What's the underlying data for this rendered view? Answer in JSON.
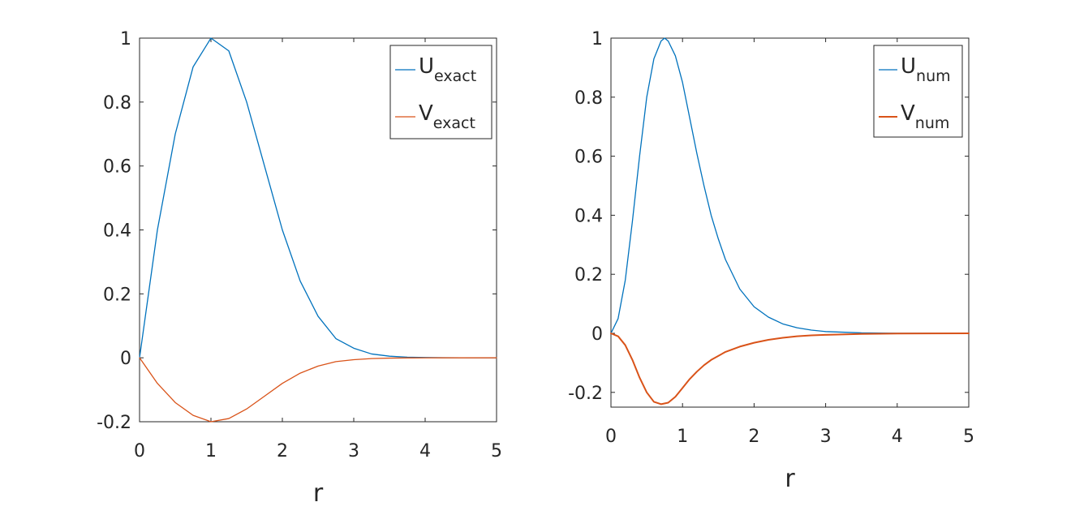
{
  "chart_data": [
    {
      "type": "line",
      "xlabel": "r",
      "ylabel": "",
      "xlim": [
        0,
        5
      ],
      "ylim": [
        -0.2,
        1
      ],
      "xticks": [
        "0",
        "1",
        "2",
        "3",
        "4",
        "5"
      ],
      "yticks": [
        "-0.2",
        "0",
        "0.2",
        "0.4",
        "0.6",
        "0.8",
        "1"
      ],
      "grid": false,
      "legend_position": "top-right",
      "series": [
        {
          "name": "U",
          "subscript": "exact",
          "color": "#0072BD",
          "x": [
            0,
            0.25,
            0.5,
            0.75,
            1,
            1.25,
            1.5,
            1.75,
            2,
            2.25,
            2.5,
            2.75,
            3,
            3.25,
            3.5,
            3.75,
            4,
            4.25,
            4.5,
            5
          ],
          "y": [
            0,
            0.4,
            0.7,
            0.91,
            1,
            0.96,
            0.8,
            0.6,
            0.4,
            0.24,
            0.13,
            0.06,
            0.03,
            0.012,
            0.005,
            0.002,
            0.001,
            0.0003,
            0.0001,
            0
          ]
        },
        {
          "name": "V",
          "subscript": "exact",
          "color": "#D95319",
          "x": [
            0,
            0.25,
            0.5,
            0.75,
            1,
            1.25,
            1.5,
            1.75,
            2,
            2.25,
            2.5,
            2.75,
            3,
            3.25,
            3.5,
            3.75,
            4,
            4.25,
            4.5,
            5
          ],
          "y": [
            0,
            -0.08,
            -0.14,
            -0.18,
            -0.2,
            -0.19,
            -0.16,
            -0.12,
            -0.08,
            -0.048,
            -0.026,
            -0.012,
            -0.006,
            -0.0024,
            -0.001,
            -0.0004,
            -0.0002,
            -0.0001,
            0,
            0
          ]
        }
      ]
    },
    {
      "type": "line",
      "xlabel": "r",
      "ylabel": "",
      "xlim": [
        0,
        5
      ],
      "ylim": [
        -0.25,
        1
      ],
      "xticks": [
        "0",
        "1",
        "2",
        "3",
        "4",
        "5"
      ],
      "yticks": [
        "-0.2",
        "0",
        "0.2",
        "0.4",
        "0.6",
        "0.8",
        "1"
      ],
      "grid": false,
      "legend_position": "top-right",
      "series": [
        {
          "name": "U",
          "subscript": "num",
          "color": "#0072BD",
          "x": [
            0,
            0.1,
            0.2,
            0.3,
            0.4,
            0.5,
            0.6,
            0.7,
            0.75,
            0.8,
            0.9,
            1,
            1.1,
            1.2,
            1.3,
            1.4,
            1.5,
            1.6,
            1.8,
            2,
            2.2,
            2.4,
            2.6,
            2.8,
            3,
            3.5,
            4,
            5
          ],
          "y": [
            0,
            0.05,
            0.18,
            0.38,
            0.6,
            0.8,
            0.93,
            0.99,
            1,
            0.99,
            0.94,
            0.85,
            0.73,
            0.61,
            0.5,
            0.4,
            0.32,
            0.25,
            0.15,
            0.09,
            0.055,
            0.032,
            0.019,
            0.011,
            0.006,
            0.0015,
            0.0004,
            0
          ]
        },
        {
          "name": "V",
          "subscript": "num",
          "color": "#D95319",
          "x": [
            0,
            0.1,
            0.2,
            0.3,
            0.4,
            0.5,
            0.6,
            0.7,
            0.8,
            0.9,
            1,
            1.1,
            1.2,
            1.3,
            1.4,
            1.6,
            1.8,
            2,
            2.2,
            2.4,
            2.6,
            2.8,
            3,
            3.5,
            4,
            5
          ],
          "y": [
            0,
            -0.01,
            -0.04,
            -0.09,
            -0.15,
            -0.2,
            -0.232,
            -0.24,
            -0.235,
            -0.215,
            -0.185,
            -0.155,
            -0.13,
            -0.108,
            -0.09,
            -0.063,
            -0.045,
            -0.032,
            -0.022,
            -0.015,
            -0.01,
            -0.007,
            -0.005,
            -0.002,
            -0.0008,
            0
          ]
        }
      ]
    }
  ]
}
